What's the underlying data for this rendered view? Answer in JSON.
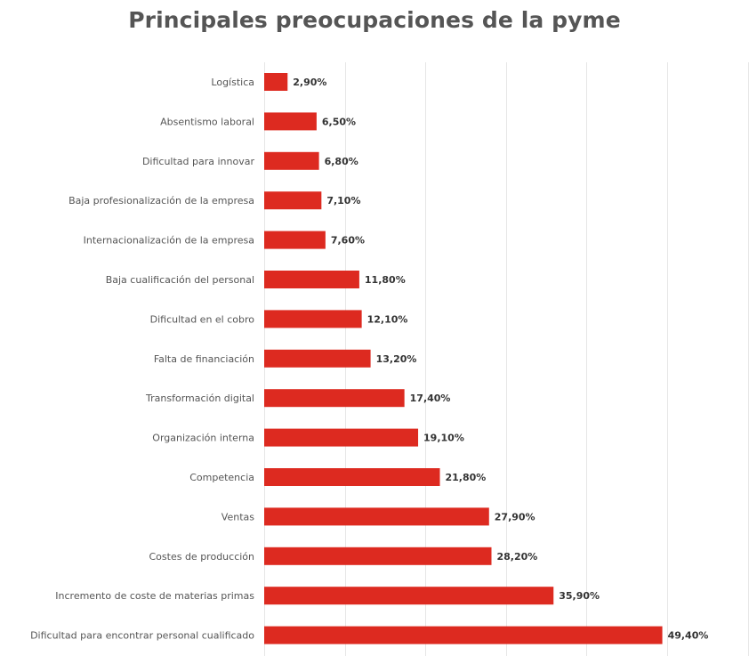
{
  "chart_data": {
    "type": "bar",
    "orientation": "horizontal",
    "title": "Principales preocupaciones de la pyme",
    "xlabel": "",
    "ylabel": "",
    "xlim": [
      0,
      60
    ],
    "grid": true,
    "bar_color": "#dd2a20",
    "categories": [
      "Logística",
      "Absentismo laboral",
      "Dificultad para innovar",
      "Baja profesionalización de la empresa",
      "Internacionalización de la empresa",
      "Baja cualificación del personal",
      "Dificultad en el cobro",
      "Falta de financiación",
      "Transformación digital",
      "Organización interna",
      "Competencia",
      "Ventas",
      "Costes de producción",
      "Incremento de coste de materias primas",
      "Dificultad para encontrar personal cualificado"
    ],
    "values": [
      2.9,
      6.5,
      6.8,
      7.1,
      7.6,
      11.8,
      12.1,
      13.2,
      17.4,
      19.1,
      21.8,
      27.9,
      28.2,
      35.9,
      49.4
    ],
    "value_labels": [
      "2,90%",
      "6,50%",
      "6,80%",
      "7,10%",
      "7,60%",
      "11,80%",
      "12,10%",
      "13,20%",
      "17,40%",
      "19,10%",
      "21,80%",
      "27,90%",
      "28,20%",
      "35,90%",
      "49,40%"
    ]
  }
}
